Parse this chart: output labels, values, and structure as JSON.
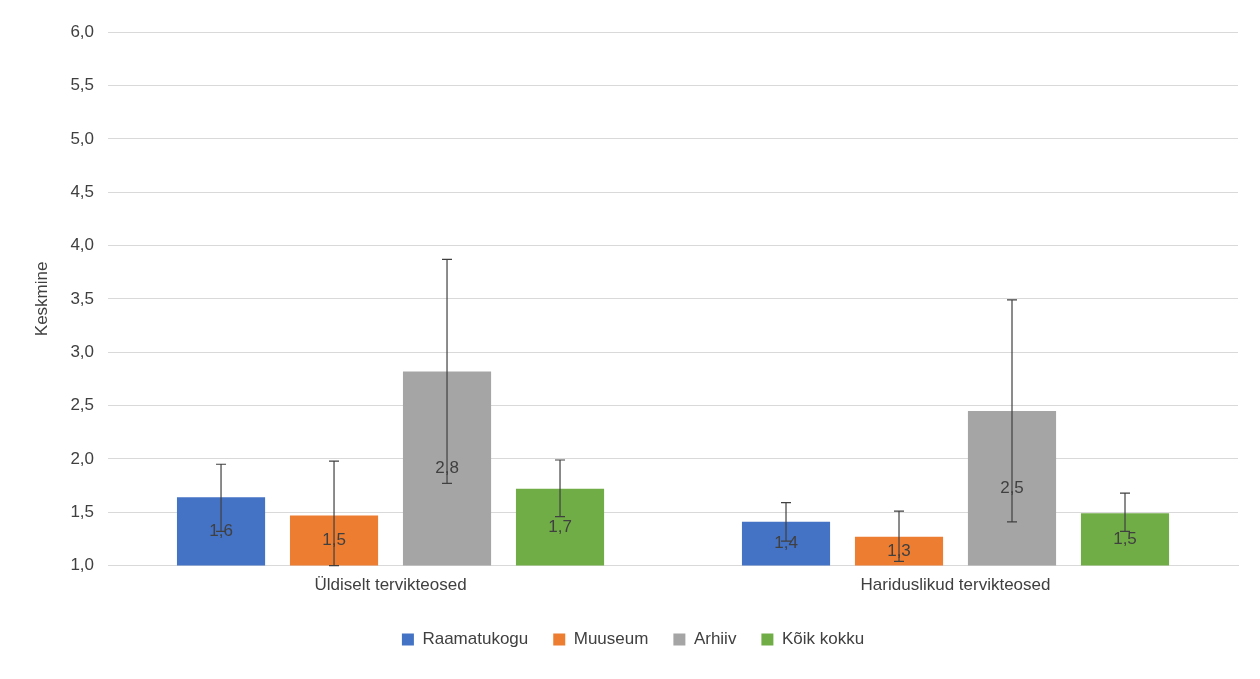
{
  "chart_data": {
    "type": "bar",
    "ylabel": "Keskmine",
    "categories": [
      "Üldiselt tervikteosed",
      "Hariduslikud tervikteosed"
    ],
    "series": [
      {
        "name": "Raamatukogu",
        "color": "#4472c4",
        "values": [
          1.64,
          1.41
        ],
        "errors": [
          [
            1.32,
            1.95
          ],
          [
            1.23,
            1.59
          ]
        ],
        "value_labels": [
          "1,6",
          "1,4"
        ]
      },
      {
        "name": "Muuseum",
        "color": "#ed7d31",
        "values": [
          1.47,
          1.27
        ],
        "errors": [
          [
            1.0,
            1.98
          ],
          [
            1.04,
            1.51
          ]
        ],
        "value_labels": [
          "1,5",
          "1,3"
        ]
      },
      {
        "name": "Arhiiv",
        "color": "#a5a5a5",
        "values": [
          2.82,
          2.45
        ],
        "errors": [
          [
            1.77,
            3.87
          ],
          [
            1.41,
            3.49
          ]
        ],
        "value_labels": [
          "2,8",
          "2,5"
        ]
      },
      {
        "name": "Kõik kokku",
        "color": "#70ad47",
        "values": [
          1.72,
          1.49
        ],
        "errors": [
          [
            1.46,
            1.99
          ],
          [
            1.32,
            1.68
          ]
        ],
        "value_labels": [
          "1,7",
          "1,5"
        ]
      }
    ],
    "ylim": [
      1,
      6
    ],
    "yticks": [
      {
        "value": 1,
        "label": "1,0"
      },
      {
        "value": 1.5,
        "label": "1,5"
      },
      {
        "value": 2,
        "label": "2,0"
      },
      {
        "value": 2.5,
        "label": "2,5"
      },
      {
        "value": 3,
        "label": "3,0"
      },
      {
        "value": 3.5,
        "label": "3,5"
      },
      {
        "value": 4,
        "label": "4,0"
      },
      {
        "value": 4.5,
        "label": "4,5"
      },
      {
        "value": 5,
        "label": "5,0"
      },
      {
        "value": 5.5,
        "label": "5,5"
      },
      {
        "value": 6,
        "label": "6,0"
      }
    ],
    "grid": "y",
    "legend": "bottom"
  }
}
